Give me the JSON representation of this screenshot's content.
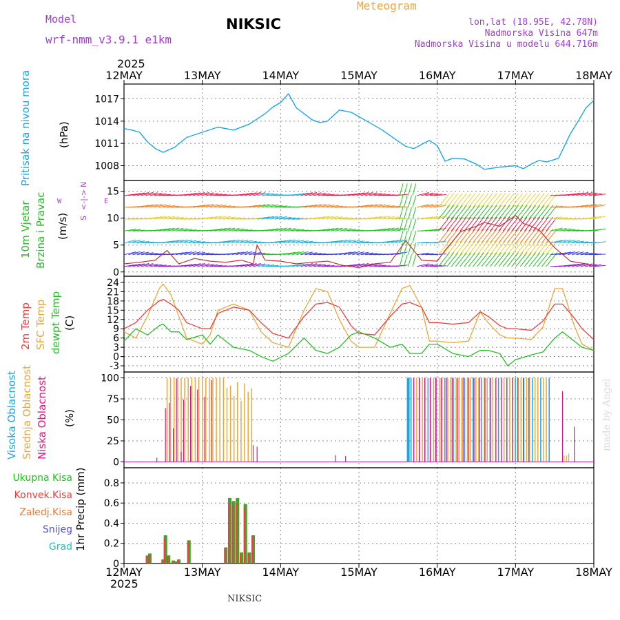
{
  "header": {
    "model_label": "Model",
    "model_name": "wrf-nmm_v3.9.1 e1km",
    "station": "NIKSIC",
    "title": "Meteogram",
    "lonlat": "lon,lat (18.95E, 42.78N)",
    "elevation": "Nadmorska Visina 647m",
    "model_elevation": "Nadmorska Visina u modelu 644.716m",
    "year_top": "2025",
    "year_bottom": "2025",
    "footer_station": "NIKSIC",
    "credit": "made by Angel"
  },
  "colors": {
    "pressure": "#1aa6e8",
    "temp2m": "#f03c3c",
    "sfc": "#e8a838",
    "dewpt": "#22c022",
    "high_cloud": "#1aa6e8",
    "mid_cloud": "#e8a838",
    "low_cloud": "#d01890",
    "total_precip": "#4aa02c",
    "conv_precip": "#f03c3c",
    "wind_speed": "#c83030",
    "grid": "#888888"
  },
  "panel_labels": {
    "pressure": [
      "Pritisak na nivou mora",
      "(hPa)"
    ],
    "wind": [
      "10m Vjetar",
      "Brzina i Pravac",
      "(m/s)"
    ],
    "wind_compass": [
      "N",
      "<-|->",
      "S",
      "W",
      "E"
    ],
    "temp": [
      "2m Temp",
      "SFC Temp",
      "dewpt Temp",
      "(C)"
    ],
    "cloud": [
      "Visoka Oblacnost",
      "Srednja Oblacnost",
      "Niska Oblacnost",
      "(%)"
    ],
    "precip": [
      "Ukupna Kisa",
      "Konvek.Kisa",
      "Zaledj.Kisa",
      "Snijeg",
      "Grad",
      "1hr Precip (mm)"
    ]
  },
  "chart_data": {
    "type": "line",
    "x_ticks": [
      "12MAY",
      "13MAY",
      "14MAY",
      "15MAY",
      "16MAY",
      "17MAY",
      "18MAY"
    ],
    "x_range_days": [
      0,
      6
    ],
    "panels": {
      "pressure": {
        "ylim": [
          1006,
          1019
        ],
        "yticks": [
          1008,
          1011,
          1014,
          1017
        ],
        "x": [
          0,
          0.1,
          0.2,
          0.3,
          0.4,
          0.5,
          0.65,
          0.8,
          1.0,
          1.2,
          1.4,
          1.6,
          1.8,
          1.9,
          2.0,
          2.1,
          2.2,
          2.3,
          2.4,
          2.5,
          2.6,
          2.75,
          2.9,
          3.0,
          3.1,
          3.3,
          3.5,
          3.6,
          3.7,
          3.9,
          4.0,
          4.1,
          4.2,
          4.35,
          4.5,
          4.6,
          4.8,
          5.0,
          5.1,
          5.2,
          5.3,
          5.4,
          5.55,
          5.7,
          5.8,
          5.9,
          6.0
        ],
        "values": [
          1013,
          1012.8,
          1012.5,
          1011.2,
          1010.3,
          1009.8,
          1010.5,
          1011.8,
          1012.5,
          1013.2,
          1012.8,
          1013.6,
          1015.0,
          1015.9,
          1016.5,
          1017.7,
          1015.8,
          1015.0,
          1014.2,
          1013.8,
          1014.0,
          1015.5,
          1015.2,
          1014.6,
          1014.0,
          1012.8,
          1011.3,
          1010.6,
          1010.3,
          1011.4,
          1010.7,
          1008.6,
          1009.0,
          1008.9,
          1008.2,
          1007.5,
          1007.8,
          1008.0,
          1007.6,
          1008.2,
          1008.7,
          1008.5,
          1009.0,
          1012.3,
          1014.0,
          1015.8,
          1016.8
        ]
      },
      "wind": {
        "ylim": [
          -0.8,
          17
        ],
        "yticks": [
          0,
          5,
          10,
          15
        ],
        "speed_x": [
          0,
          0.2,
          0.4,
          0.55,
          0.7,
          0.9,
          1.1,
          1.3,
          1.5,
          1.65,
          1.7,
          1.8,
          2.0,
          2.2,
          2.4,
          2.6,
          2.8,
          3.0,
          3.2,
          3.4,
          3.6,
          3.8,
          4.0,
          4.1,
          4.3,
          4.5,
          4.6,
          4.8,
          5.0,
          5.1,
          5.2,
          5.3,
          5.5,
          5.7,
          5.9,
          6.0
        ],
        "speed_values": [
          1.5,
          1.8,
          2.2,
          4.0,
          1.5,
          2.5,
          2.0,
          1.8,
          2.2,
          1.5,
          5.0,
          2.2,
          2.0,
          1.5,
          1.8,
          2.0,
          1.2,
          0.8,
          1.5,
          1.8,
          5.8,
          2.2,
          2.0,
          4.0,
          7.5,
          8.5,
          9.2,
          8.5,
          10.5,
          9.0,
          8.5,
          7.8,
          4.5,
          2.0,
          1.5,
          1.2
        ]
      },
      "temp": {
        "ylim": [
          -5,
          26
        ],
        "yticks": [
          -3,
          0,
          3,
          6,
          9,
          12,
          15,
          18,
          21,
          24
        ],
        "x": [
          0,
          0.15,
          0.3,
          0.45,
          0.5,
          0.6,
          0.7,
          0.8,
          1.0,
          1.1,
          1.2,
          1.4,
          1.6,
          1.75,
          1.9,
          2.1,
          2.3,
          2.45,
          2.6,
          2.75,
          2.9,
          3.0,
          3.2,
          3.4,
          3.55,
          3.65,
          3.8,
          3.9,
          4.0,
          4.2,
          4.4,
          4.55,
          4.65,
          4.8,
          4.9,
          5.0,
          5.2,
          5.35,
          5.5,
          5.6,
          5.75,
          5.85,
          6.0
        ],
        "temp2m": [
          9,
          11,
          15,
          18,
          18.5,
          17,
          15,
          11,
          9,
          9,
          14,
          16,
          15,
          11,
          7.5,
          6,
          13,
          17,
          17.5,
          16,
          10,
          7.5,
          7,
          13,
          17,
          17.5,
          16,
          11,
          11,
          10.5,
          11,
          14.5,
          13,
          10,
          9,
          9,
          8.5,
          11.5,
          17,
          17,
          12.5,
          9,
          5.5
        ],
        "sfc": [
          8,
          6,
          13,
          22,
          23.5,
          20,
          13,
          6,
          4,
          7,
          15,
          17,
          15,
          8,
          4.5,
          3,
          15,
          22,
          21,
          12,
          5,
          3,
          3,
          14,
          22,
          23,
          16,
          5,
          5,
          4.5,
          5,
          14.5,
          11,
          7,
          6,
          6,
          5.5,
          9.5,
          22,
          22,
          10,
          4,
          2
        ],
        "dewpt": [
          5,
          9,
          7,
          10,
          10.5,
          8,
          8,
          5.5,
          7,
          4,
          7,
          3,
          2,
          0,
          -1.5,
          1,
          6,
          2,
          1,
          3,
          7,
          8,
          6,
          3,
          4,
          1,
          1,
          4,
          4,
          1,
          0,
          2,
          2,
          1,
          -3,
          -1,
          0.5,
          1.5,
          6,
          8,
          5,
          3,
          2
        ]
      },
      "cloud": {
        "ylim": [
          -7,
          107
        ],
        "yticks": [
          0,
          25,
          50,
          75,
          100
        ]
      },
      "precip": {
        "ylim": [
          0,
          0.95
        ],
        "yticks": [
          0,
          0.2,
          0.4,
          0.6,
          0.8
        ],
        "x": [
          0.3,
          0.33,
          0.5,
          0.53,
          0.57,
          0.63,
          0.67,
          0.7,
          0.83,
          1.3,
          1.35,
          1.4,
          1.45,
          1.5,
          1.55,
          1.6,
          1.65
        ],
        "total_values": [
          0.08,
          0.1,
          0.04,
          0.28,
          0.08,
          0.03,
          0.02,
          0.04,
          0.23,
          0.16,
          0.65,
          0.62,
          0.65,
          0.11,
          0.59,
          0.11,
          0.28
        ],
        "conv_values": [
          0.07,
          0.09,
          0.03,
          0.25,
          0.07,
          0.02,
          0.02,
          0.03,
          0.22,
          0.15,
          0.6,
          0.58,
          0.6,
          0.1,
          0.55,
          0.1,
          0.27
        ]
      }
    }
  }
}
